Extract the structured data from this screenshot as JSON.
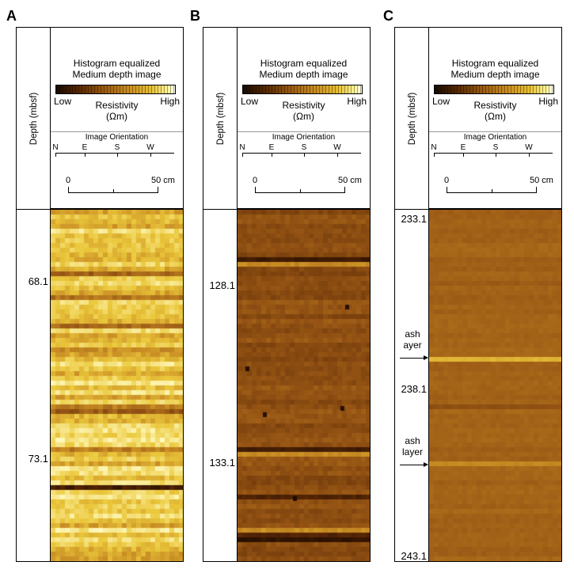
{
  "panels": [
    {
      "letter": "A",
      "depth_axis_title": "Depth (mbsf)",
      "legend": {
        "title_line1": "Histogram equalized",
        "title_line2": "Medium depth image",
        "low_label": "Low",
        "high_label": "High",
        "quantity_line1": "Resistivity",
        "quantity_line2": "(Ωm)"
      },
      "orientation": {
        "title": "Image Orientation",
        "labels": [
          "N",
          "E",
          "S",
          "W"
        ]
      },
      "scale": {
        "start_label": "0",
        "end_label": "50 cm"
      },
      "depth_labels": [
        "68.1",
        "73.1"
      ],
      "image_palette": "bright-yellow"
    },
    {
      "letter": "B",
      "depth_axis_title": "Depth (mbsf)",
      "legend": {
        "title_line1": "Histogram equalized",
        "title_line2": "Medium depth image",
        "low_label": "Low",
        "high_label": "High",
        "quantity_line1": "Resistivity",
        "quantity_line2": "(Ωm)"
      },
      "orientation": {
        "title": "Image Orientation",
        "labels": [
          "N",
          "E",
          "S",
          "W"
        ]
      },
      "scale": {
        "start_label": "0",
        "end_label": "50 cm"
      },
      "depth_labels": [
        "128.1",
        "133.1"
      ],
      "image_palette": "dark-brown"
    },
    {
      "letter": "C",
      "depth_axis_title": "Depth (mbsf)",
      "legend": {
        "title_line1": "Histogram equalized",
        "title_line2": "Medium depth image",
        "low_label": "Low",
        "high_label": "High",
        "quantity_line1": "Resistivity",
        "quantity_line2": "(Ωm)"
      },
      "orientation": {
        "title": "Image Orientation",
        "labels": [
          "N",
          "E",
          "S",
          "W"
        ]
      },
      "scale": {
        "start_label": "0",
        "end_label": "50 cm"
      },
      "depth_labels": [
        "233.1",
        "238.1",
        "243.1"
      ],
      "annotations": [
        {
          "line1": "ash",
          "line2": "ayer"
        },
        {
          "line1": "ash",
          "line2": "layer"
        }
      ],
      "image_palette": "medium-brown"
    }
  ]
}
